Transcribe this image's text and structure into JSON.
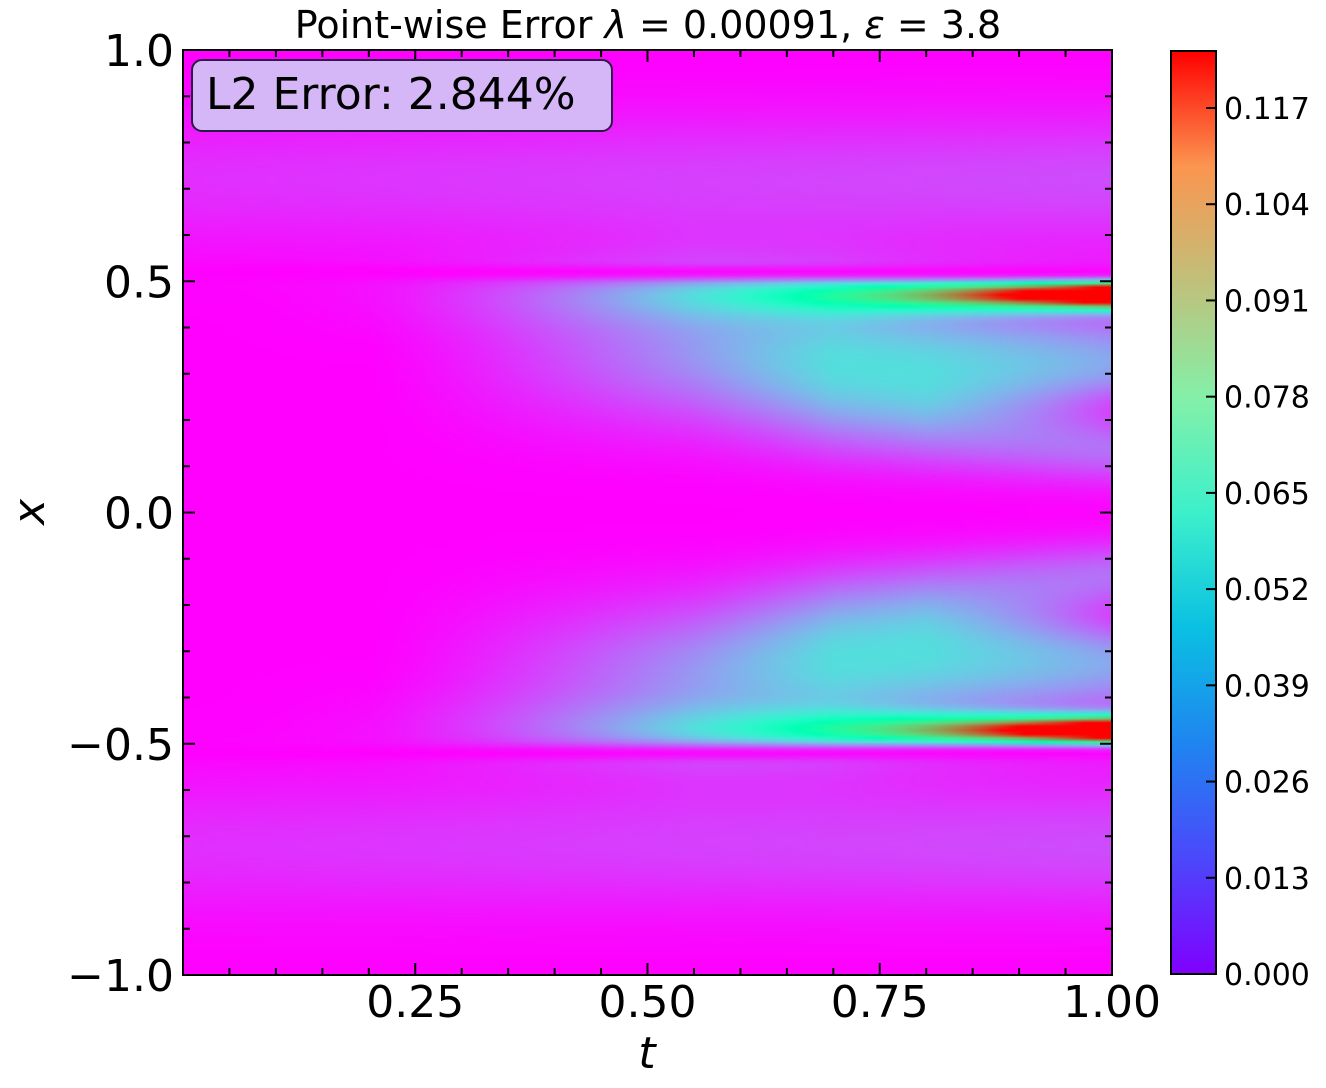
{
  "chart_data": {
    "type": "heatmap",
    "title": "Point-wise Error λ = 0.00091, ε = 3.8",
    "title_parts": {
      "prefix": "Point-wise Error ",
      "lambda_sym": "λ",
      "lambda_val": " = 0.00091, ",
      "eps_sym": "ε",
      "eps_val": " = 3.8"
    },
    "xlabel": "t",
    "ylabel": "x",
    "xlim": [
      0.0,
      1.0
    ],
    "ylim": [
      -1.0,
      1.0
    ],
    "xticks": [
      {
        "value": 0.25,
        "label": "0.25"
      },
      {
        "value": 0.5,
        "label": "0.50"
      },
      {
        "value": 0.75,
        "label": "0.75"
      },
      {
        "value": 1.0,
        "label": "1.00"
      }
    ],
    "yticks": [
      {
        "value": 1.0,
        "label": "1.0"
      },
      {
        "value": 0.5,
        "label": "0.5"
      },
      {
        "value": 0.0,
        "label": "0.0"
      },
      {
        "value": -0.5,
        "label": "−0.5"
      },
      {
        "value": -1.0,
        "label": "−1.0"
      }
    ],
    "colormap": "rainbow",
    "colorbar": {
      "min": 0.0,
      "max": 0.1247,
      "ticks": [
        {
          "value": 0.0,
          "label": "0.000"
        },
        {
          "value": 0.013,
          "label": "0.013"
        },
        {
          "value": 0.026,
          "label": "0.026"
        },
        {
          "value": 0.039,
          "label": "0.039"
        },
        {
          "value": 0.052,
          "label": "0.052"
        },
        {
          "value": 0.065,
          "label": "0.065"
        },
        {
          "value": 0.078,
          "label": "0.078"
        },
        {
          "value": 0.091,
          "label": "0.091"
        },
        {
          "value": 0.104,
          "label": "0.104"
        },
        {
          "value": 0.117,
          "label": "0.117"
        }
      ]
    },
    "annotation": {
      "text": "L2 Error: 2.844%",
      "box_color": "#d5b7f7",
      "position": "top-left"
    },
    "field_features": [
      {
        "name": "upper-peak",
        "t": 1.0,
        "x": 0.49,
        "value": 0.12
      },
      {
        "name": "lower-peak",
        "t": 1.0,
        "x": -0.49,
        "value": 0.12
      },
      {
        "name": "upper-branch",
        "t": 0.75,
        "x": 0.3,
        "value": 0.04
      },
      {
        "name": "lower-branch",
        "t": 0.75,
        "x": -0.3,
        "value": 0.04
      }
    ]
  }
}
